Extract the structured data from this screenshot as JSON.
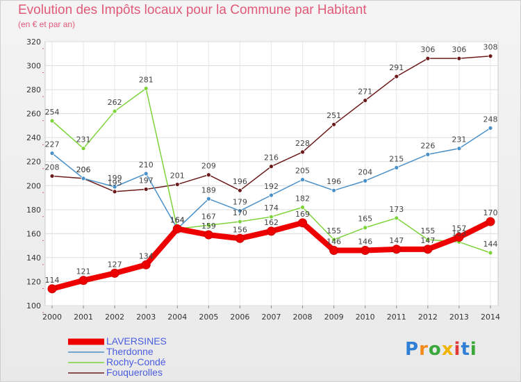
{
  "title": "Evolution des Impôts locaux pour la Commune par Habitant",
  "subtitle": "(en € et par an)",
  "logo": {
    "text": "Proxiti",
    "letters": [
      "P",
      "r",
      "o",
      "x",
      "i",
      "t",
      "i"
    ],
    "colors": [
      "#2f7fd6",
      "#f28a1c",
      "#3aa83a",
      "#f0b400",
      "#e03a3a",
      "#2f7fd6",
      "#3aa83a"
    ]
  },
  "chart_data": {
    "type": "line",
    "x": [
      "2000",
      "2001",
      "2002",
      "2003",
      "2004",
      "2005",
      "2006",
      "2007",
      "2008",
      "2009",
      "2010",
      "2011",
      "2012",
      "2013",
      "2014"
    ],
    "ylim": [
      100,
      320
    ],
    "yticks": [
      100,
      120,
      140,
      160,
      180,
      200,
      220,
      240,
      260,
      280,
      300,
      320
    ],
    "grid": true,
    "series": [
      {
        "name": "Fouquerolles",
        "color": "#6b1a1a",
        "values": [
          208,
          206,
          195,
          197,
          201,
          209,
          196,
          216,
          228,
          251,
          271,
          291,
          306,
          306,
          308
        ]
      },
      {
        "name": "Therdonne",
        "color": "#4a90c8",
        "values": [
          227,
          206,
          199,
          210,
          164,
          189,
          179,
          192,
          205,
          196,
          204,
          215,
          226,
          231,
          248
        ]
      },
      {
        "name": "Rochy-Condé",
        "color": "#7dd33a",
        "values": [
          254,
          231,
          262,
          281,
          164,
          167,
          170,
          174,
          182,
          155,
          165,
          173,
          155,
          153,
          144
        ]
      },
      {
        "name": "LAVERSINES",
        "color": "#ee0000",
        "values": [
          114,
          121,
          127,
          134,
          164,
          159,
          156,
          162,
          169,
          146,
          146,
          147,
          147,
          157,
          170
        ]
      }
    ],
    "legend": [
      "LAVERSINES",
      "Therdonne",
      "Rochy-Condé",
      "Fouquerolles"
    ]
  }
}
